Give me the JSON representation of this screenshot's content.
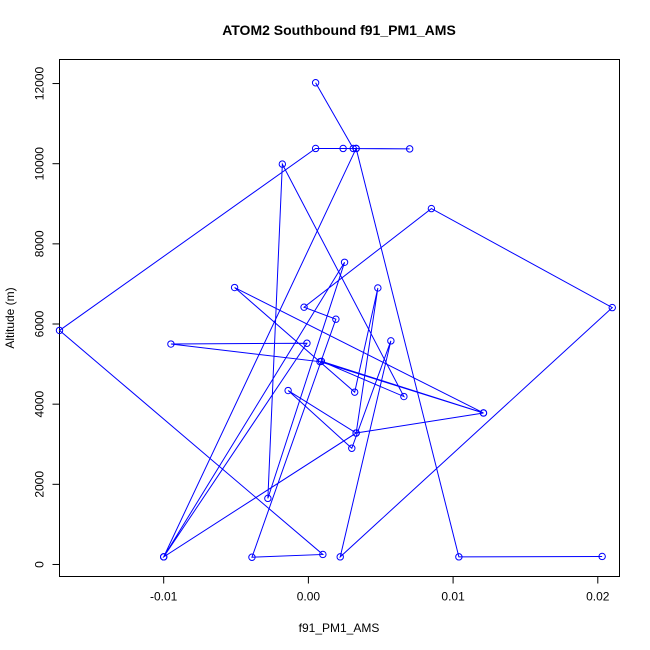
{
  "chart_data": {
    "type": "line",
    "title": "ATOM2 Southbound f91_PM1_AMS",
    "xlabel": "f91_PM1_AMS",
    "ylabel": "Altitude (m)",
    "xlim": [
      -0.0172,
      0.0215
    ],
    "ylim": [
      -300,
      12600
    ],
    "xticks": [
      -0.01,
      0.0,
      0.01,
      0.02
    ],
    "xtick_labels": [
      "-0.01",
      "0.00",
      "0.01",
      "0.02"
    ],
    "yticks": [
      0,
      2000,
      4000,
      6000,
      8000,
      10000,
      12000
    ],
    "ytick_labels": [
      "0",
      "2000",
      "4000",
      "6000",
      "8000",
      "10000",
      "12000"
    ],
    "grid": false,
    "series": [
      {
        "color": "#0000ff",
        "marker": "open-circle",
        "points": [
          {
            "x": 0.0005,
            "y": 12020
          },
          {
            "x": 0.0031,
            "y": 10380
          },
          {
            "x": 0.0033,
            "y": 10380
          },
          {
            "x": 0.007,
            "y": 10370
          },
          {
            "x": 0.0024,
            "y": 10380
          },
          {
            "x": 0.0005,
            "y": 10380
          },
          {
            "x": -0.0172,
            "y": 5840
          },
          {
            "x": 0.001,
            "y": 250
          },
          {
            "x": -0.0039,
            "y": 180
          },
          {
            "x": 0.0019,
            "y": 6120
          },
          {
            "x": -0.0003,
            "y": 6420
          },
          {
            "x": 0.0085,
            "y": 8880
          },
          {
            "x": 0.021,
            "y": 6410
          },
          {
            "x": 0.0022,
            "y": 190
          },
          {
            "x": 0.0057,
            "y": 5580
          },
          {
            "x": 0.003,
            "y": 2900
          },
          {
            "x": -0.0014,
            "y": 4340
          },
          {
            "x": 0.0033,
            "y": 3280
          },
          {
            "x": 0.0048,
            "y": 6900
          },
          {
            "x": 0.0032,
            "y": 4300
          },
          {
            "x": -0.0051,
            "y": 6910
          },
          {
            "x": 0.0121,
            "y": 3780
          },
          {
            "x": 0.0009,
            "y": 5070
          },
          {
            "x": 0.0066,
            "y": 4190
          },
          {
            "x": -0.0018,
            "y": 9990
          },
          {
            "x": -0.0028,
            "y": 1650
          },
          {
            "x": 0.0025,
            "y": 7540
          },
          {
            "x": -0.01,
            "y": 190
          },
          {
            "x": -0.0001,
            "y": 5520
          },
          {
            "x": -0.0095,
            "y": 5500
          },
          {
            "x": 0.0008,
            "y": 5060
          },
          {
            "x": 0.0121,
            "y": 3780
          },
          {
            "x": 0.0033,
            "y": 3280
          },
          {
            "x": -0.01,
            "y": 190
          },
          {
            "x": 0.0033,
            "y": 10380
          },
          {
            "x": 0.0104,
            "y": 190
          },
          {
            "x": 0.0203,
            "y": 200
          }
        ]
      }
    ]
  }
}
